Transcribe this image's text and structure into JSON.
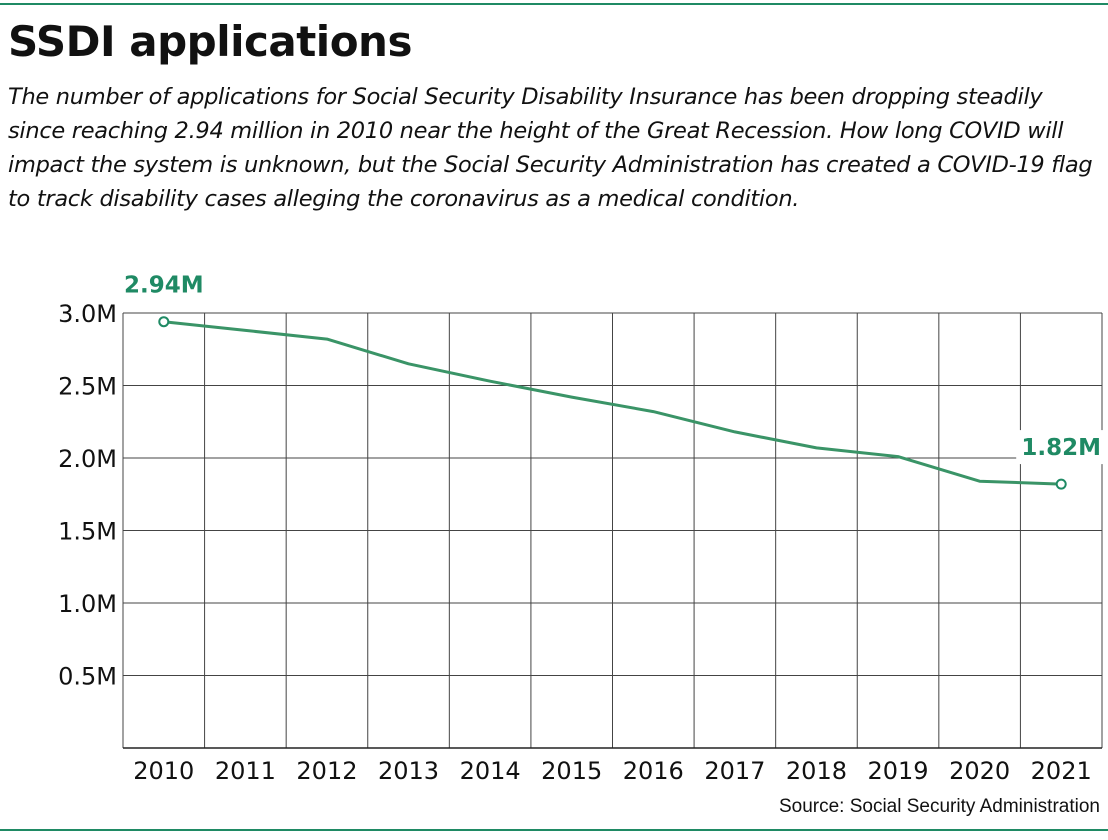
{
  "header": {
    "title": "SSDI applications",
    "subtitle": "The number of applications for Social Security Disability Insurance has been dropping steadily since reaching 2.94 million in 2010 near the height of the Great Recession. How long COVID will impact the system is unknown, but the Social Security Administration has created a COVID-19 flag to track disability cases alleging the coronavirus as a medical condition."
  },
  "footer": {
    "source": "Source: Social Security Administration"
  },
  "colors": {
    "line": "#3a9467",
    "accent": "#1f8a64",
    "grid": "#444444",
    "rule": "#1f8a64"
  },
  "chart_data": {
    "type": "line",
    "title": "SSDI applications",
    "xlabel": "",
    "ylabel": "",
    "x": [
      "2010",
      "2011",
      "2012",
      "2013",
      "2014",
      "2015",
      "2016",
      "2017",
      "2018",
      "2019",
      "2020",
      "2021"
    ],
    "series": [
      {
        "values": [
          2.94,
          2.88,
          2.82,
          2.65,
          2.53,
          2.42,
          2.32,
          2.18,
          2.07,
          2.01,
          1.84,
          1.82
        ]
      }
    ],
    "ylim": [
      0,
      3.0
    ],
    "yticks": [
      0.5,
      1.0,
      1.5,
      2.0,
      2.5,
      3.0
    ],
    "ytick_labels": [
      "0.5M",
      "1.0M",
      "1.5M",
      "2.0M",
      "2.5M",
      "3.0M"
    ],
    "grid": true,
    "annotations": [
      {
        "x": "2010",
        "y": 2.94,
        "text": "2.94M"
      },
      {
        "x": "2021",
        "y": 1.82,
        "text": "1.82M"
      }
    ]
  }
}
